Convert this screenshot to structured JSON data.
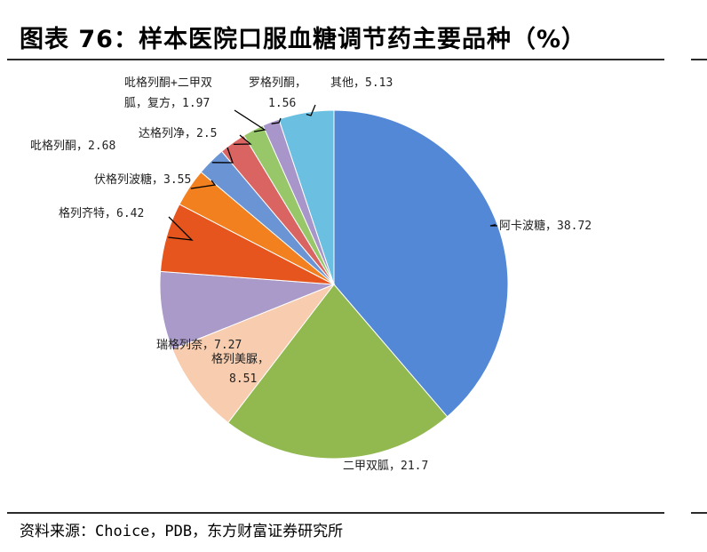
{
  "title": "图表 76：样本医院口服血糖调节药主要品种（%）",
  "source": "资料来源：Choice，PDB，东方财富证券研究所",
  "chart_data": {
    "type": "pie",
    "title": "图表 76：样本医院口服血糖调节药主要品种（%）",
    "slices": [
      {
        "label": "阿卡波糖",
        "value": 38.72,
        "color": "#5288d6"
      },
      {
        "label": "二甲双胍",
        "value": 21.7,
        "color": "#92b850"
      },
      {
        "label": "格列美脲",
        "value": 8.51,
        "color": "#f8ccae"
      },
      {
        "label": "瑞格列奈",
        "value": 7.27,
        "color": "#a99ac9"
      },
      {
        "label": "格列齐特",
        "value": 6.42,
        "color": "#e5551d"
      },
      {
        "label": "伏格列波糖",
        "value": 3.55,
        "color": "#f2801f"
      },
      {
        "label": "吡格列酮",
        "value": 2.68,
        "color": "#6b94d4"
      },
      {
        "label": "达格列净",
        "value": 2.5,
        "color": "#d96461"
      },
      {
        "label": "吡格列酮+二甲双胍，复方",
        "value": 1.97,
        "color": "#98c76a"
      },
      {
        "label": "罗格列酮",
        "value": 1.56,
        "color": "#a895c9"
      },
      {
        "label": "其他",
        "value": 5.13,
        "color": "#6bbfe0"
      }
    ],
    "label_texts": [
      "阿卡波糖，38.72",
      "二甲双胍，21.7",
      "格列美脲，",
      "8.51",
      "瑞格列奈，7.27",
      "格列齐特，6.42",
      "伏格列波糖，3.55",
      "吡格列酮，2.68",
      "达格列净，2.5",
      "吡格列酮+二甲双",
      "胍，复方，1.97",
      "罗格列酮，",
      "1.56",
      "其他，5.13"
    ]
  }
}
